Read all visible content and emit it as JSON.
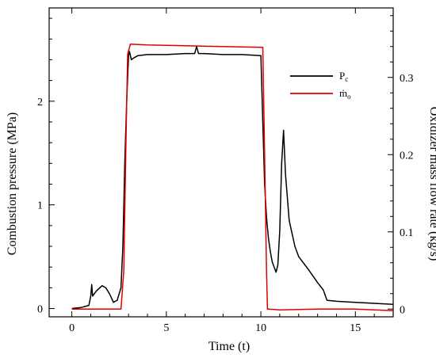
{
  "chart_data": {
    "type": "line",
    "xlabel": "Time (t)",
    "ylabel_left": "Combustion pressure (MPa)",
    "ylabel_right": "Oxidizer mass flow rate (kg/s)",
    "xlim": [
      -1.2,
      17
    ],
    "ylim_left": [
      -0.08,
      2.9
    ],
    "ylim_right": [
      -0.01,
      0.39
    ],
    "x_ticks": [
      0,
      5,
      10,
      15
    ],
    "y_left_ticks": [
      0,
      1,
      2
    ],
    "y_right_ticks": [
      0,
      0.1,
      0.2,
      0.3
    ],
    "grid": false,
    "legend_position": "upper-right",
    "series": [
      {
        "name": "Pc",
        "axis": "left",
        "color": "#000000",
        "x": [
          0,
          0.5,
          0.9,
          1.0,
          1.05,
          1.1,
          1.3,
          1.6,
          1.8,
          2.0,
          2.2,
          2.4,
          2.5,
          2.6,
          2.7,
          2.8,
          2.9,
          3.0,
          3.05,
          3.15,
          3.3,
          3.5,
          4,
          5,
          6,
          6.5,
          6.6,
          6.7,
          7,
          8,
          9,
          10,
          10.1,
          10.2,
          10.3,
          10.4,
          10.5,
          10.6,
          10.8,
          10.9,
          11.0,
          11.1,
          11.2,
          11.3,
          11.5,
          11.8,
          12,
          12.5,
          13,
          13.3,
          13.5,
          14,
          15,
          16,
          17
        ],
        "y": [
          0.0,
          0.01,
          0.03,
          0.12,
          0.23,
          0.12,
          0.17,
          0.22,
          0.2,
          0.14,
          0.06,
          0.08,
          0.14,
          0.2,
          0.6,
          1.4,
          2.0,
          2.44,
          2.48,
          2.4,
          2.42,
          2.44,
          2.45,
          2.45,
          2.46,
          2.46,
          2.53,
          2.46,
          2.46,
          2.45,
          2.45,
          2.44,
          1.8,
          1.2,
          0.88,
          0.68,
          0.55,
          0.45,
          0.35,
          0.42,
          0.75,
          1.4,
          1.72,
          1.3,
          0.85,
          0.6,
          0.5,
          0.38,
          0.25,
          0.18,
          0.08,
          0.07,
          0.06,
          0.05,
          0.04
        ]
      },
      {
        "name": "ṁo",
        "axis": "right",
        "color": "#e00000",
        "x": [
          0,
          2.6,
          2.75,
          2.85,
          2.95,
          3.1,
          4,
          6,
          8,
          10,
          10.1,
          10.2,
          10.3,
          10.35,
          10.4,
          11,
          13,
          15,
          17
        ],
        "y": [
          0.0,
          0.0,
          0.05,
          0.2,
          0.33,
          0.343,
          0.342,
          0.341,
          0.34,
          0.339,
          0.339,
          0.2,
          0.05,
          0.0,
          0.0,
          -0.001,
          0.0,
          0.0,
          -0.002
        ]
      }
    ]
  }
}
